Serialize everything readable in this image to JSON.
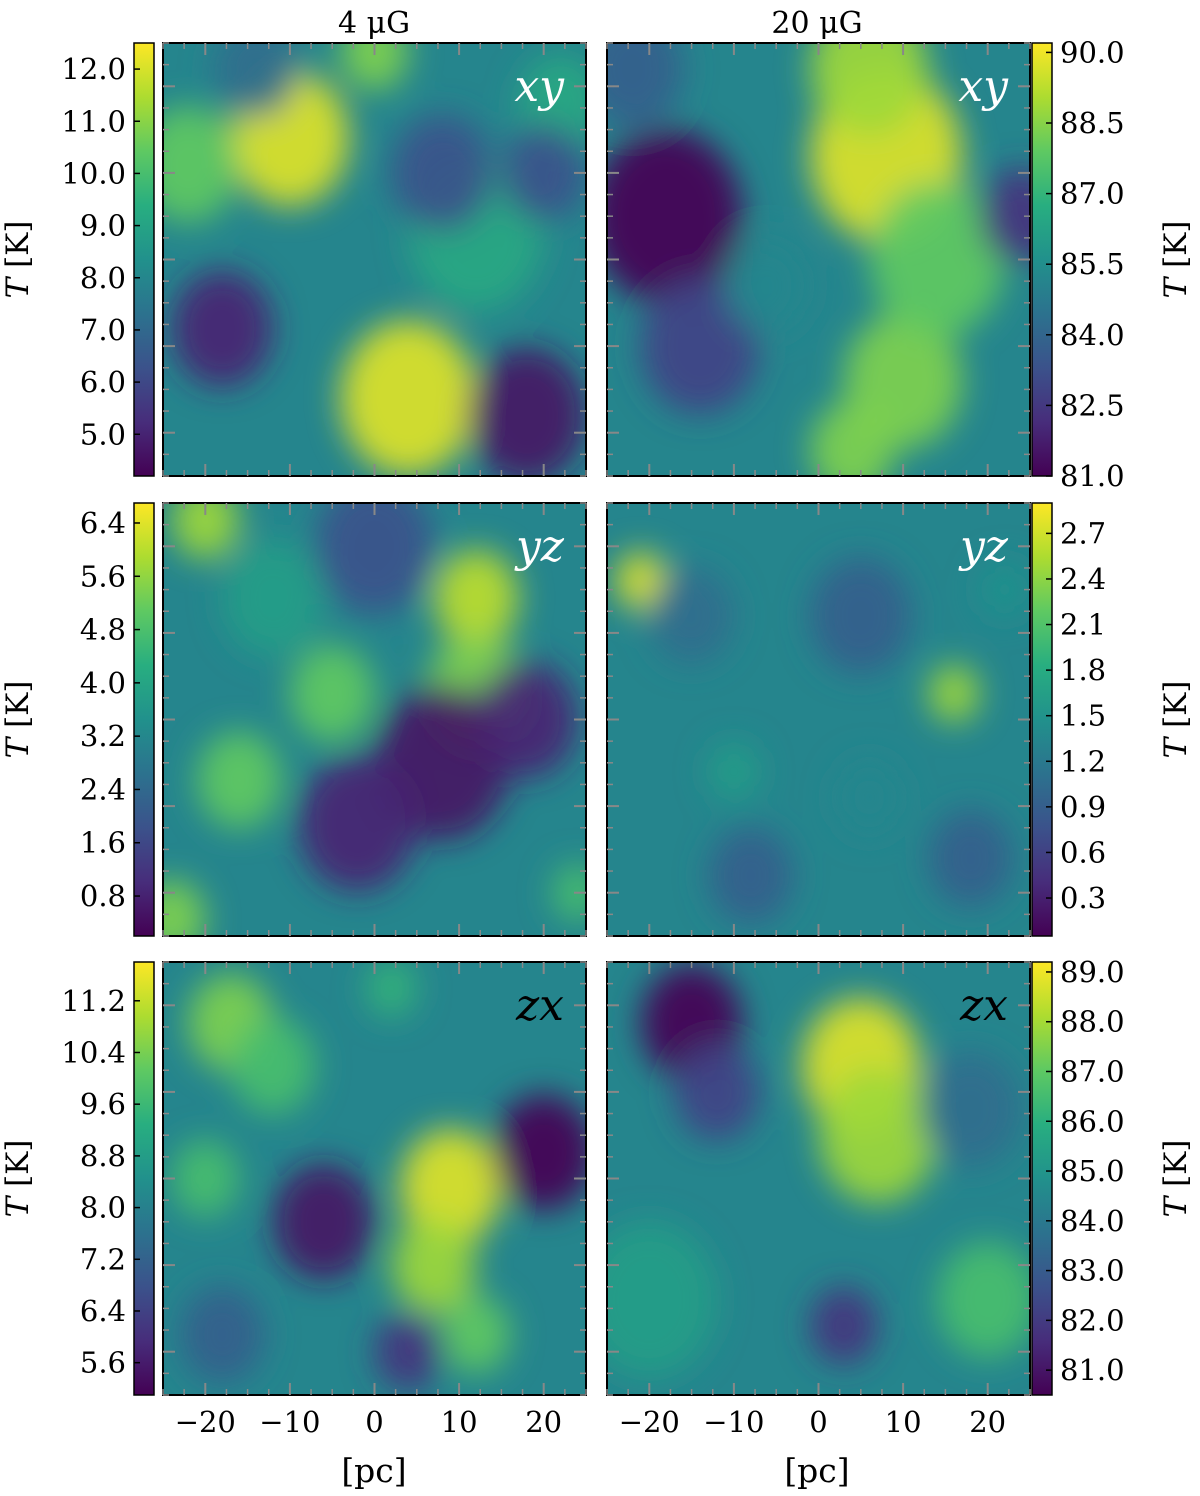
{
  "figure": {
    "column_titles": [
      "4 μG",
      "20 μG"
    ],
    "xlabel": "[pc]",
    "colorbar_symbol": "T",
    "colorbar_unit": "[K]",
    "colormap": [
      "#440154",
      "#472d7b",
      "#3b528b",
      "#2c728e",
      "#21918c",
      "#28ae80",
      "#5ec962",
      "#addc30",
      "#fde725"
    ]
  },
  "chart_data": [
    {
      "type": "heatmap",
      "panel": "xy",
      "column": "4 μG",
      "label_color": "#ffffff",
      "x_ticks": [
        -20,
        -10,
        0,
        10,
        20
      ],
      "x_ticklabels": [],
      "xlim": [
        -25,
        25
      ],
      "ylim": [
        -25,
        25
      ],
      "colorbar": {
        "side": "left",
        "range": [
          4.2,
          12.5
        ],
        "ticks": [
          "5.0",
          "6.0",
          "7.0",
          "8.0",
          "9.0",
          "10.0",
          "11.0",
          "12.0"
        ],
        "label": "T [K]"
      },
      "hotspots": [
        {
          "x": -10,
          "y": 14,
          "v": 0.95,
          "r": 7
        },
        {
          "x": 4,
          "y": -16,
          "v": 0.95,
          "r": 8
        },
        {
          "x": -22,
          "y": 11,
          "v": 0.75,
          "r": 6
        },
        {
          "x": 0,
          "y": 24,
          "v": 0.8,
          "r": 4
        },
        {
          "x": 12,
          "y": 3,
          "v": 0.6,
          "r": 8
        },
        {
          "x": 22,
          "y": 18,
          "v": 0.6,
          "r": 5
        },
        {
          "x": -18,
          "y": -8,
          "v": 0.1,
          "r": 6
        },
        {
          "x": 18,
          "y": -18,
          "v": 0.05,
          "r": 7
        },
        {
          "x": 8,
          "y": 10,
          "v": 0.25,
          "r": 6
        },
        {
          "x": 20,
          "y": 10,
          "v": 0.25,
          "r": 5
        },
        {
          "x": -14,
          "y": 22,
          "v": 0.35,
          "r": 5
        }
      ]
    },
    {
      "type": "heatmap",
      "panel": "xy",
      "column": "20 μG",
      "label_color": "#ffffff",
      "x_ticks": [
        -20,
        -10,
        0,
        10,
        20
      ],
      "x_ticklabels": [],
      "xlim": [
        -25,
        25
      ],
      "ylim": [
        -25,
        25
      ],
      "colorbar": {
        "side": "right",
        "range": [
          81.0,
          90.2
        ],
        "ticks": [
          "81.0",
          "82.5",
          "84.0",
          "85.5",
          "87.0",
          "88.5",
          "90.0"
        ],
        "label": "T [K]"
      },
      "hotspots": [
        {
          "x": 8,
          "y": 12,
          "v": 0.95,
          "r": 9
        },
        {
          "x": 6,
          "y": 22,
          "v": 0.85,
          "r": 7
        },
        {
          "x": 10,
          "y": -14,
          "v": 0.8,
          "r": 7
        },
        {
          "x": 4,
          "y": -22,
          "v": 0.8,
          "r": 5
        },
        {
          "x": 14,
          "y": 0,
          "v": 0.75,
          "r": 8
        },
        {
          "x": -18,
          "y": 5,
          "v": 0.0,
          "r": 9
        },
        {
          "x": -14,
          "y": -10,
          "v": 0.2,
          "r": 7
        },
        {
          "x": 24,
          "y": 5,
          "v": 0.15,
          "r": 5
        },
        {
          "x": -22,
          "y": 22,
          "v": 0.3,
          "r": 6
        },
        {
          "x": -6,
          "y": -3,
          "v": 0.45,
          "r": 5
        }
      ]
    },
    {
      "type": "heatmap",
      "panel": "yz",
      "column": "4 μG",
      "label_color": "#ffffff",
      "x_ticks": [
        -20,
        -10,
        0,
        10,
        20
      ],
      "x_ticklabels": [],
      "xlim": [
        -25,
        25
      ],
      "ylim": [
        -25,
        25
      ],
      "colorbar": {
        "side": "left",
        "range": [
          0.2,
          6.7
        ],
        "ticks": [
          "0.8",
          "1.6",
          "2.4",
          "3.2",
          "4.0",
          "4.8",
          "5.6",
          "6.4"
        ],
        "label": "T [K]"
      },
      "hotspots": [
        {
          "x": 12,
          "y": 14,
          "v": 0.9,
          "r": 5
        },
        {
          "x": 12,
          "y": 3,
          "v": 0.8,
          "r": 6
        },
        {
          "x": -5,
          "y": 3,
          "v": 0.75,
          "r": 5
        },
        {
          "x": -16,
          "y": -7,
          "v": 0.75,
          "r": 5
        },
        {
          "x": -20,
          "y": 23,
          "v": 0.85,
          "r": 4
        },
        {
          "x": -24,
          "y": -23,
          "v": 0.8,
          "r": 4
        },
        {
          "x": 24,
          "y": -20,
          "v": 0.7,
          "r": 3
        },
        {
          "x": -12,
          "y": 14,
          "v": 0.55,
          "r": 6
        },
        {
          "x": 8,
          "y": -5,
          "v": 0.05,
          "r": 8
        },
        {
          "x": -2,
          "y": -12,
          "v": 0.1,
          "r": 7
        },
        {
          "x": 18,
          "y": 0,
          "v": 0.1,
          "r": 6
        },
        {
          "x": 0,
          "y": 20,
          "v": 0.25,
          "r": 7
        }
      ]
    },
    {
      "type": "heatmap",
      "panel": "yz",
      "column": "20 μG",
      "label_color": "#ffffff",
      "x_ticks": [
        -20,
        -10,
        0,
        10,
        20
      ],
      "x_ticklabels": [],
      "xlim": [
        -25,
        25
      ],
      "ylim": [
        -25,
        25
      ],
      "colorbar": {
        "side": "right",
        "range": [
          0.05,
          2.9
        ],
        "ticks": [
          "0.3",
          "0.6",
          "0.9",
          "1.2",
          "1.5",
          "1.8",
          "2.1",
          "2.4",
          "2.7"
        ],
        "label": "T [K]"
      },
      "hotspots": [
        {
          "x": -21,
          "y": 16,
          "v": 0.95,
          "r": 3
        },
        {
          "x": 16,
          "y": 3,
          "v": 0.85,
          "r": 3
        },
        {
          "x": -10,
          "y": -6,
          "v": 0.55,
          "r": 3
        },
        {
          "x": 6,
          "y": -9,
          "v": 0.45,
          "r": 4
        },
        {
          "x": 22,
          "y": 15,
          "v": 0.5,
          "r": 3
        },
        {
          "x": -15,
          "y": 12,
          "v": 0.35,
          "r": 5
        },
        {
          "x": 5,
          "y": 12,
          "v": 0.3,
          "r": 6
        },
        {
          "x": -8,
          "y": -18,
          "v": 0.3,
          "r": 5
        },
        {
          "x": 18,
          "y": -16,
          "v": 0.3,
          "r": 5
        }
      ]
    },
    {
      "type": "heatmap",
      "panel": "zx",
      "column": "4 μG",
      "label_color": "#000000",
      "x_ticks": [
        -20,
        -10,
        0,
        10,
        20
      ],
      "x_ticklabels": [
        "−20",
        "−10",
        "0",
        "10",
        "20"
      ],
      "xlim": [
        -25,
        25
      ],
      "ylim": [
        -25,
        25
      ],
      "colorbar": {
        "side": "left",
        "range": [
          5.1,
          11.8
        ],
        "ticks": [
          "5.6",
          "6.4",
          "7.2",
          "8.0",
          "8.8",
          "9.6",
          "10.4",
          "11.2"
        ],
        "label": "T [K]"
      },
      "hotspots": [
        {
          "x": 9,
          "y": -1,
          "v": 0.95,
          "r": 6
        },
        {
          "x": 7,
          "y": -10,
          "v": 0.85,
          "r": 5
        },
        {
          "x": 12,
          "y": -18,
          "v": 0.75,
          "r": 4
        },
        {
          "x": -17,
          "y": 18,
          "v": 0.8,
          "r": 5
        },
        {
          "x": -12,
          "y": 13,
          "v": 0.7,
          "r": 5
        },
        {
          "x": -20,
          "y": 0,
          "v": 0.7,
          "r": 4
        },
        {
          "x": 2,
          "y": 22,
          "v": 0.65,
          "r": 3
        },
        {
          "x": 20,
          "y": 3,
          "v": 0.0,
          "r": 6
        },
        {
          "x": -6,
          "y": -5,
          "v": 0.05,
          "r": 6
        },
        {
          "x": 4,
          "y": -20,
          "v": 0.15,
          "r": 4
        },
        {
          "x": -18,
          "y": -18,
          "v": 0.3,
          "r": 5
        }
      ]
    },
    {
      "type": "heatmap",
      "panel": "zx",
      "column": "20 μG",
      "label_color": "#000000",
      "x_ticks": [
        -20,
        -10,
        0,
        10,
        20
      ],
      "x_ticklabels": [
        "−20",
        "−10",
        "0",
        "10",
        "20"
      ],
      "xlim": [
        -25,
        25
      ],
      "ylim": [
        -25,
        25
      ],
      "colorbar": {
        "side": "right",
        "range": [
          80.5,
          89.2
        ],
        "ticks": [
          "81.0",
          "82.0",
          "83.0",
          "84.0",
          "85.0",
          "86.0",
          "87.0",
          "88.0",
          "89.0"
        ],
        "label": "T [K]"
      },
      "hotspots": [
        {
          "x": 5,
          "y": 13,
          "v": 0.95,
          "r": 7
        },
        {
          "x": 7,
          "y": 5,
          "v": 0.85,
          "r": 7
        },
        {
          "x": 20,
          "y": -14,
          "v": 0.7,
          "r": 6
        },
        {
          "x": -15,
          "y": 18,
          "v": 0.0,
          "r": 6
        },
        {
          "x": -12,
          "y": 10,
          "v": 0.2,
          "r": 5
        },
        {
          "x": 3,
          "y": -17,
          "v": 0.15,
          "r": 4
        },
        {
          "x": 18,
          "y": 8,
          "v": 0.35,
          "r": 6
        },
        {
          "x": -20,
          "y": -14,
          "v": 0.55,
          "r": 8
        }
      ]
    }
  ]
}
